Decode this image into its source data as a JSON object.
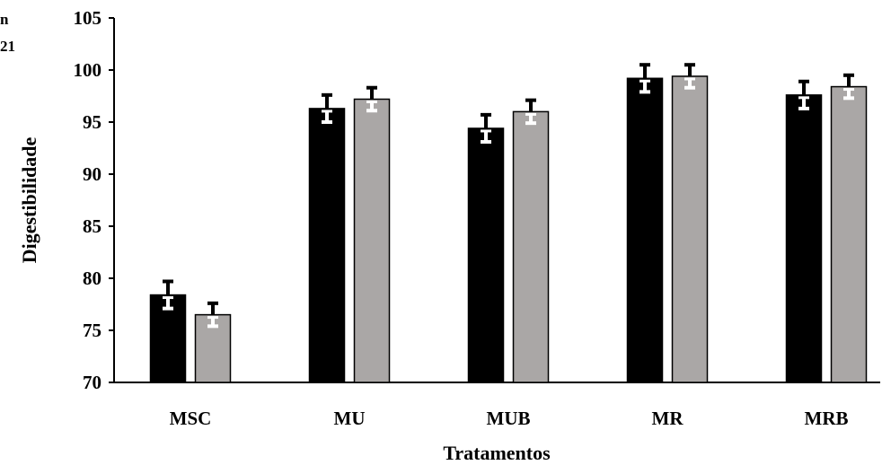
{
  "edge_fragments": [
    "n",
    "21"
  ],
  "chart_data": {
    "type": "bar",
    "title": "",
    "xlabel": "Tratamentos",
    "ylabel": "Digestibilidade",
    "ylim": [
      70,
      105
    ],
    "yticks": [
      70,
      75,
      80,
      85,
      90,
      95,
      100,
      105
    ],
    "categories": [
      "MSC",
      "MU",
      "MUB",
      "MR",
      "MRB"
    ],
    "series": [
      {
        "color": "#000000",
        "errbar_color": "#ffffff",
        "values": [
          78.4,
          96.3,
          94.4,
          99.2,
          97.6
        ],
        "errors": [
          1.3,
          1.3,
          1.3,
          1.3,
          1.3
        ]
      },
      {
        "color": "#aaa7a6",
        "errbar_color": "#ffffff",
        "values": [
          76.5,
          97.2,
          96.0,
          99.4,
          98.4
        ],
        "errors": [
          1.1,
          1.1,
          1.1,
          1.1,
          1.1
        ]
      }
    ],
    "grid": false,
    "legend": "none"
  }
}
